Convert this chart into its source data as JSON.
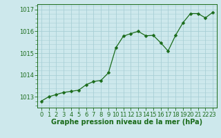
{
  "x": [
    0,
    1,
    2,
    3,
    4,
    5,
    6,
    7,
    8,
    9,
    10,
    11,
    12,
    13,
    14,
    15,
    16,
    17,
    18,
    19,
    20,
    21,
    22,
    23
  ],
  "y": [
    1012.8,
    1013.0,
    1013.1,
    1013.2,
    1013.25,
    1013.3,
    1013.55,
    1013.7,
    1013.75,
    1014.1,
    1015.25,
    1015.78,
    1015.9,
    1016.0,
    1015.8,
    1015.82,
    1015.48,
    1015.1,
    1015.82,
    1016.4,
    1016.82,
    1016.82,
    1016.62,
    1016.88
  ],
  "line_color": "#1a6b1a",
  "marker": "D",
  "marker_size": 2.5,
  "bg_color": "#cde8ec",
  "grid_color": "#a8cfd6",
  "xlabel": "Graphe pression niveau de la mer (hPa)",
  "xlabel_color": "#1a6b1a",
  "tick_color": "#1a6b1a",
  "ylim": [
    1012.5,
    1017.25
  ],
  "xlim": [
    -0.5,
    23.5
  ],
  "yticks": [
    1013,
    1014,
    1015,
    1016,
    1017
  ],
  "xticks": [
    0,
    1,
    2,
    3,
    4,
    5,
    6,
    7,
    8,
    9,
    10,
    11,
    12,
    13,
    14,
    15,
    16,
    17,
    18,
    19,
    20,
    21,
    22,
    23
  ],
  "axis_fontsize": 6.0,
  "xlabel_fontsize": 7.0
}
